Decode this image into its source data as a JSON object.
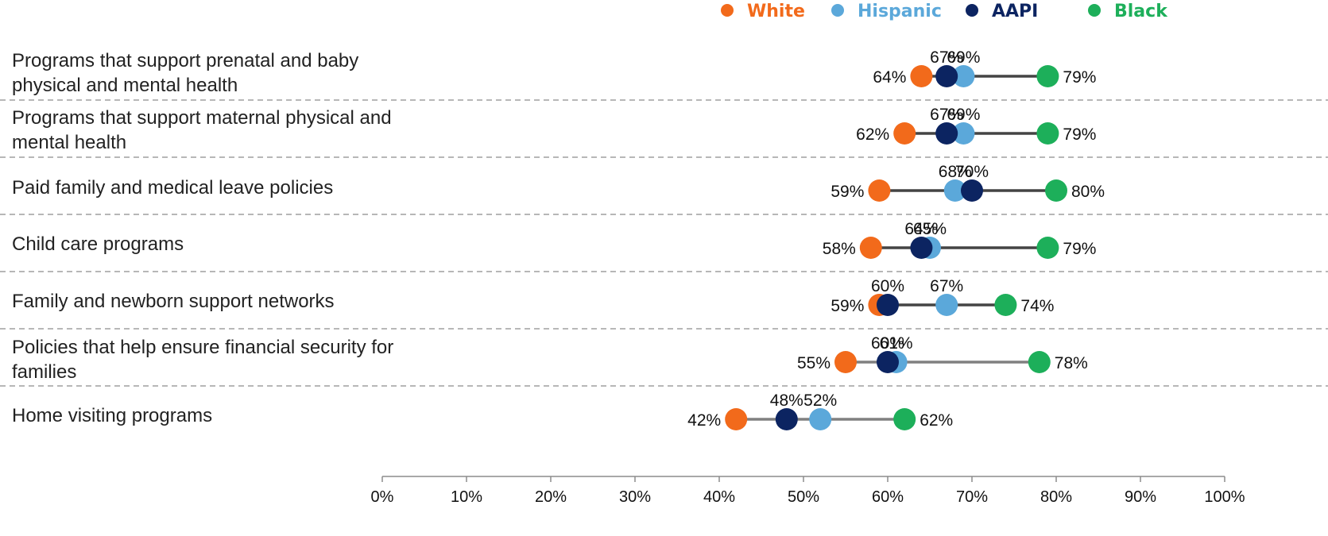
{
  "chart_data": {
    "type": "dot",
    "legend": [
      {
        "name": "White",
        "color": "#F26A1B"
      },
      {
        "name": "Hispanic",
        "color": "#5BA8DA"
      },
      {
        "name": "AAPI",
        "color": "#0C2461"
      },
      {
        "name": "Black",
        "color": "#1DAF5A"
      }
    ],
    "categories": [
      "Programs that support prenatal and baby physical and mental health",
      "Programs that support maternal physical and mental health",
      "Paid family and medical leave policies",
      "Child care programs",
      "Family and newborn support networks",
      "Policies that help ensure financial security for families",
      "Home visiting programs"
    ],
    "series": [
      {
        "name": "White",
        "values": [
          64,
          62,
          59,
          58,
          59,
          55,
          42
        ]
      },
      {
        "name": "Hispanic",
        "values": [
          69,
          69,
          68,
          65,
          67,
          61,
          52
        ]
      },
      {
        "name": "AAPI",
        "values": [
          67,
          67,
          70,
          64,
          60,
          60,
          48
        ]
      },
      {
        "name": "Black",
        "values": [
          79,
          79,
          80,
          79,
          74,
          78,
          62
        ]
      }
    ],
    "value_labels": [
      [
        "64%",
        "69%",
        "67%",
        "79%"
      ],
      [
        "62%",
        "69%",
        "67%",
        "79%"
      ],
      [
        "59%",
        "68%",
        "70%",
        "80%"
      ],
      [
        "58%",
        "65%",
        "64%",
        "79%"
      ],
      [
        "59%",
        "67%",
        "60%",
        "74%"
      ],
      [
        "55%",
        "61%",
        "60%",
        "78%"
      ],
      [
        "42%",
        "52%",
        "48%",
        "62%"
      ]
    ],
    "xlim": [
      0,
      100
    ],
    "x_ticks": [
      0,
      10,
      20,
      30,
      40,
      50,
      60,
      70,
      80,
      90,
      100
    ],
    "x_tick_labels": [
      "0%",
      "10%",
      "20%",
      "30%",
      "40%",
      "50%",
      "60%",
      "70%",
      "80%",
      "90%",
      "100%"
    ],
    "grid": false,
    "legend_position": "top-right"
  }
}
